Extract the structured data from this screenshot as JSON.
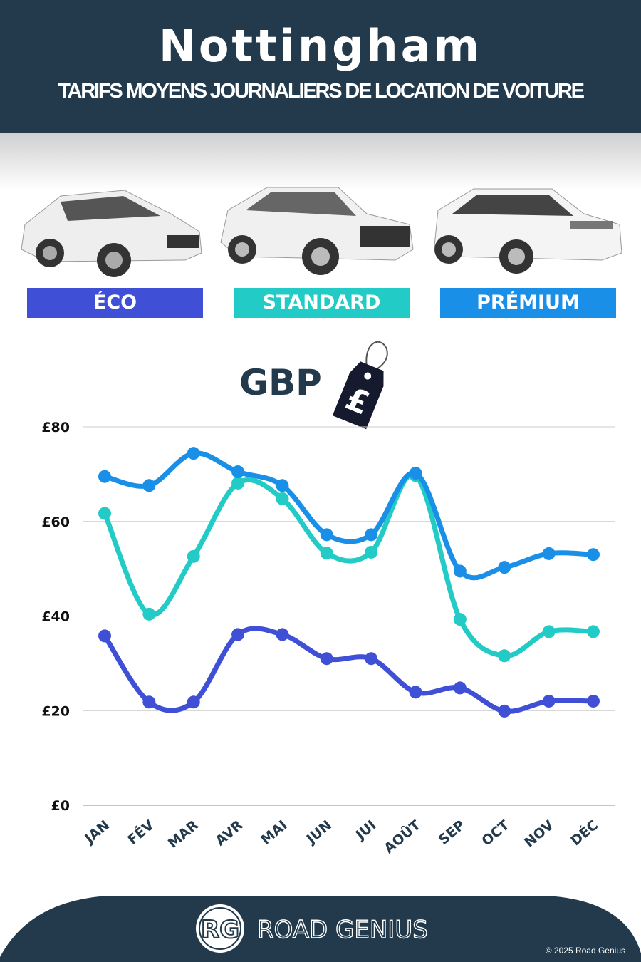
{
  "header": {
    "title": "Nottingham",
    "subtitle": "TARIFS MOYENS JOURNALIERS DE LOCATION DE VOITURE"
  },
  "categories": [
    {
      "label": "ÉCO",
      "color": "#3f4fd6"
    },
    {
      "label": "STANDARD",
      "color": "#22cbc5"
    },
    {
      "label": "PRÉMIUM",
      "color": "#1a8fe8"
    }
  ],
  "currency": {
    "label": "GBP",
    "symbol": "£",
    "icon": "price-tag-icon"
  },
  "chart_data": {
    "type": "line",
    "categories": [
      "JAN",
      "FÉV",
      "MAR",
      "AVR",
      "MAI",
      "JUN",
      "JUI",
      "AOÛT",
      "SEP",
      "OCT",
      "NOV",
      "DÉC"
    ],
    "yticks": [
      "£0",
      "£20",
      "£40",
      "£60",
      "£80"
    ],
    "ylim": [
      0,
      80
    ],
    "grid": true,
    "series": [
      {
        "name": "PRÉMIUM",
        "color": "#1a8fe8",
        "values": [
          69.5,
          67.6,
          74.4,
          70.5,
          67.6,
          57.2,
          57.2,
          70.2,
          49.5,
          50.3,
          53.2,
          53.0
        ]
      },
      {
        "name": "STANDARD",
        "color": "#22cbc5",
        "values": [
          61.7,
          40.4,
          52.6,
          68.1,
          64.8,
          53.3,
          53.5,
          69.7,
          39.3,
          31.6,
          36.7,
          36.7
        ]
      },
      {
        "name": "ÉCO",
        "color": "#3f4fd6",
        "values": [
          35.8,
          21.8,
          21.8,
          36.1,
          36.1,
          31.0,
          31.0,
          23.9,
          24.8,
          19.9,
          22.0,
          22.0
        ]
      }
    ]
  },
  "footer": {
    "logo_initials": "RG",
    "brand": "ROAD GENIUS",
    "copyright": "© 2025 Road Genius"
  }
}
